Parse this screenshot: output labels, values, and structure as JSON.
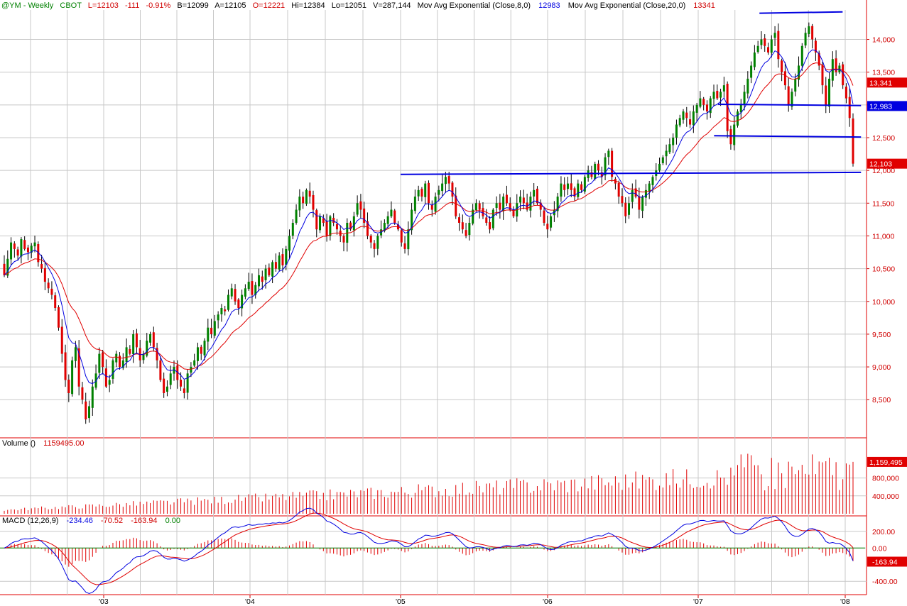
{
  "header": {
    "symbol": "@YM - Weekly",
    "exchange": "CBOT",
    "last": "L=12103",
    "change": "-111",
    "change_pct": "-0.91%",
    "bid": "B=12099",
    "ask": "A=12105",
    "open": "O=12221",
    "high": "Hi=12384",
    "low": "Lo=12051",
    "volume": "V=287,144",
    "ma1_label": "Mov Avg Exponential (Close,8,0)",
    "ma1_value": "12983",
    "ma2_label": "Mov Avg Exponential (Close,20,0)",
    "ma2_value": "13341"
  },
  "colors": {
    "up": "#008000",
    "down": "#e00000",
    "ema8": "#0000e0",
    "ema20": "#e00000",
    "grid": "#c8c8c8",
    "axis": "#d00000",
    "trendline": "#0000e0"
  },
  "chart_data": [
    {
      "type": "candlestick",
      "panel": "price",
      "y_ticks": [
        "8,500",
        "9,000",
        "9,500",
        "10,000",
        "10,500",
        "11,000",
        "11,500",
        "12,000",
        "12,500",
        "13,000",
        "13,500",
        "14,000"
      ],
      "ylim": [
        7950,
        14450
      ],
      "x_date_labels": [
        "'03",
        "'04",
        "'05",
        "'06",
        "'07",
        "'08"
      ],
      "price_tags": [
        {
          "label": "13,341",
          "value": 13341,
          "color": "#e00000"
        },
        {
          "label": "12,983",
          "value": 12983,
          "color": "#0000e0"
        },
        {
          "label": "12,103",
          "value": 12103,
          "color": "#e00000"
        }
      ],
      "trendlines": [
        {
          "from": [
            "2005-01-01",
            11940
          ],
          "to": [
            "2008-02-10",
            11970
          ]
        },
        {
          "from": [
            "2007-02-10",
            12530
          ],
          "to": [
            "2008-02-10",
            12510
          ]
        },
        {
          "from": [
            "2007-02-20",
            13010
          ],
          "to": [
            "2008-02-10",
            12990
          ]
        },
        {
          "from": [
            "2007-06-01",
            14400
          ],
          "to": [
            "2007-12-25",
            14420
          ]
        }
      ],
      "closes": [
        10400,
        10650,
        10900,
        10800,
        10700,
        10950,
        10800,
        10750,
        10850,
        10900,
        10600,
        10500,
        10300,
        10200,
        10100,
        9900,
        9600,
        9200,
        8800,
        8600,
        9100,
        9300,
        8700,
        8500,
        8200,
        8400,
        8700,
        8900,
        9200,
        9000,
        8700,
        8800,
        9100,
        9200,
        9000,
        9100,
        9300,
        9200,
        9500,
        9300,
        9100,
        9200,
        9400,
        9500,
        9300,
        9100,
        8800,
        8600,
        8700,
        8900,
        9000,
        8800,
        8700,
        8600,
        8900,
        9000,
        9100,
        9300,
        9200,
        9400,
        9600,
        9500,
        9700,
        9800,
        9900,
        9850,
        10100,
        10200,
        10000,
        9900,
        10100,
        10200,
        10300,
        10100,
        10250,
        10400,
        10300,
        10500,
        10400,
        10600,
        10500,
        10700,
        10550,
        10800,
        11000,
        11200,
        11400,
        11600,
        11500,
        11700,
        11600,
        11400,
        11100,
        11300,
        11200,
        11000,
        11300,
        11200,
        11100,
        11000,
        10900,
        11200,
        11100,
        11300,
        11500,
        11400,
        11200,
        11000,
        10900,
        10800,
        11000,
        11100,
        11200,
        11300,
        11400,
        11200,
        11100,
        10900,
        10800,
        11100,
        11400,
        11600,
        11700,
        11600,
        11800,
        11500,
        11400,
        11600,
        11700,
        11800,
        11900,
        11800,
        11600,
        11300,
        11200,
        11100,
        11000,
        11200,
        11400,
        11500,
        11400,
        11300,
        11200,
        11100,
        11400,
        11500,
        11400,
        11600,
        11500,
        11400,
        11300,
        11500,
        11600,
        11500,
        11400,
        11600,
        11700,
        11500,
        11400,
        11200,
        11100,
        11300,
        11400,
        11600,
        11800,
        11700,
        11800,
        11700,
        11600,
        11800,
        11700,
        11900,
        12000,
        11900,
        12100,
        12000,
        11900,
        12200,
        12300,
        11900,
        11800,
        11600,
        11500,
        11300,
        11500,
        11700,
        11600,
        11400,
        11600,
        11700,
        11800,
        11900,
        12000,
        12100,
        12200,
        12300,
        12400,
        12500,
        12700,
        12800,
        12900,
        12800,
        12700,
        12900,
        13000,
        13100,
        13000,
        12900,
        13100,
        13200,
        13100,
        13200,
        13300,
        12600,
        12400,
        12700,
        12900,
        13000,
        13200,
        13400,
        13600,
        13800,
        13900,
        14000,
        13900,
        13800,
        14000,
        14100,
        13700,
        13500,
        13300,
        13000,
        13200,
        13400,
        13600,
        13900,
        14100,
        14200,
        14000,
        13800,
        13600,
        13300,
        13000,
        13400,
        13700,
        13500,
        13600,
        13300,
        13100,
        12800,
        12103
      ],
      "ema8_last": 12983,
      "ema20_last": 13341
    },
    {
      "type": "bar",
      "panel": "volume",
      "title": "Volume ()",
      "last_value": "1159495.00",
      "y_ticks": [
        "400,000",
        "800,000"
      ],
      "ylim": [
        0,
        1650000
      ],
      "price_tag": {
        "label": "1,159,495",
        "value": 1159495
      }
    },
    {
      "type": "line",
      "panel": "macd",
      "title": "MACD (12,26,9)",
      "values_text": [
        "-234.46",
        "-70.52",
        "-163.94",
        "0.00"
      ],
      "series": [
        {
          "name": "MACD",
          "last": -234.46
        },
        {
          "name": "Signal",
          "last": -70.52
        },
        {
          "name": "Hist",
          "last": -163.94
        }
      ],
      "y_ticks": [
        "200.00",
        "0.00",
        "-400.00"
      ],
      "ylim": [
        -560,
        360
      ],
      "price_tag": {
        "label": "-163.94",
        "value": -163.94
      }
    }
  ]
}
